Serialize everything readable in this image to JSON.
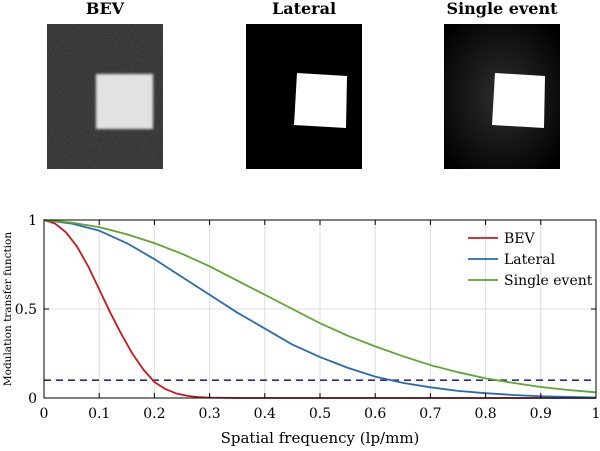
{
  "panels": [
    {
      "title": "BEV"
    },
    {
      "title": "Lateral"
    },
    {
      "title": "Single event"
    }
  ],
  "chart_data": {
    "type": "line",
    "xlabel": "Spatial frequency (lp/mm)",
    "ylabel": "Modulation transfer function",
    "xlim": [
      0,
      1
    ],
    "ylim": [
      0,
      1
    ],
    "xticks": [
      0,
      0.1,
      0.2,
      0.3,
      0.4,
      0.5,
      0.6,
      0.7,
      0.8,
      0.9,
      1
    ],
    "xtick_labels": [
      "0",
      "0.1",
      "0.2",
      "0.3",
      "0.4",
      "0.5",
      "0.6",
      "0.7",
      "0.8",
      "0.9",
      "1"
    ],
    "yticks": [
      0,
      0.5,
      1
    ],
    "ytick_labels": [
      "0",
      "0.5",
      "1"
    ],
    "grid": true,
    "legend": "top-right",
    "reference_line": {
      "y": 0.1,
      "style": "dashed",
      "color": "#2b2b8f"
    },
    "series": [
      {
        "name": "BEV",
        "color": "#c8181e",
        "x": [
          0,
          0.02,
          0.04,
          0.06,
          0.08,
          0.1,
          0.12,
          0.14,
          0.16,
          0.18,
          0.2,
          0.22,
          0.24,
          0.26,
          0.28,
          0.3,
          0.35,
          0.4,
          0.5,
          0.6,
          0.7,
          0.8,
          0.9,
          1.0
        ],
        "y": [
          1.0,
          0.98,
          0.93,
          0.85,
          0.74,
          0.61,
          0.48,
          0.36,
          0.25,
          0.16,
          0.09,
          0.05,
          0.025,
          0.012,
          0.005,
          0.002,
          0.0,
          0.0,
          0.0,
          0.0,
          0.0,
          0.0,
          0.0,
          0.0
        ]
      },
      {
        "name": "Lateral",
        "color": "#2a6bb0",
        "x": [
          0,
          0.05,
          0.1,
          0.15,
          0.2,
          0.25,
          0.3,
          0.35,
          0.4,
          0.45,
          0.5,
          0.55,
          0.6,
          0.65,
          0.7,
          0.75,
          0.8,
          0.85,
          0.9,
          0.95,
          1.0
        ],
        "y": [
          1.0,
          0.98,
          0.94,
          0.87,
          0.78,
          0.68,
          0.58,
          0.48,
          0.39,
          0.3,
          0.23,
          0.17,
          0.12,
          0.085,
          0.06,
          0.04,
          0.027,
          0.017,
          0.01,
          0.006,
          0.003
        ]
      },
      {
        "name": "Single event",
        "color": "#5fa52f",
        "x": [
          0,
          0.05,
          0.1,
          0.15,
          0.2,
          0.25,
          0.3,
          0.35,
          0.4,
          0.45,
          0.5,
          0.55,
          0.6,
          0.65,
          0.7,
          0.75,
          0.8,
          0.85,
          0.9,
          0.95,
          1.0
        ],
        "y": [
          1.0,
          0.985,
          0.96,
          0.92,
          0.87,
          0.81,
          0.74,
          0.66,
          0.58,
          0.5,
          0.42,
          0.35,
          0.29,
          0.235,
          0.185,
          0.145,
          0.11,
          0.085,
          0.062,
          0.045,
          0.032
        ]
      }
    ]
  }
}
